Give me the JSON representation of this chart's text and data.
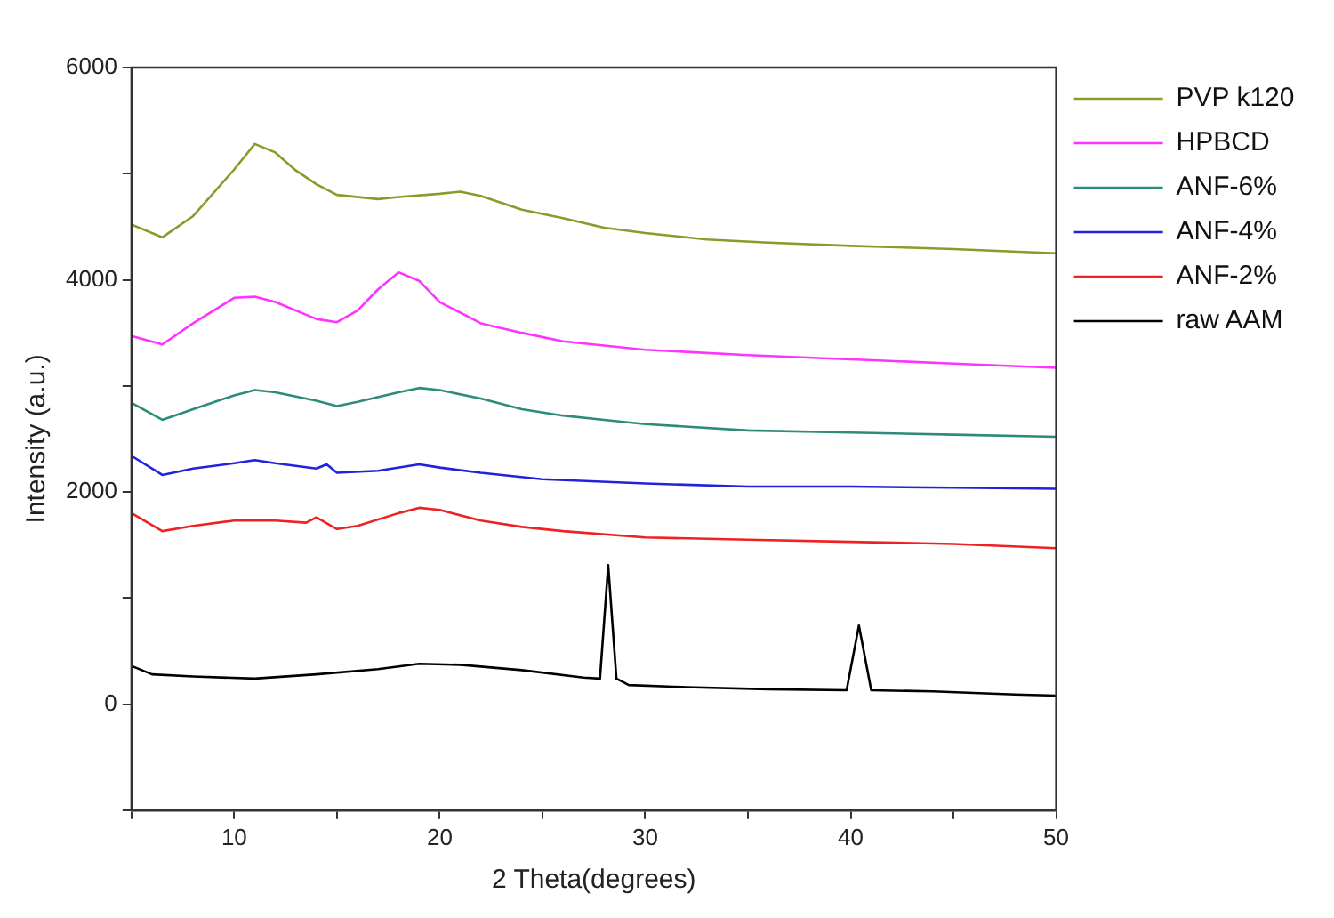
{
  "chart_data": {
    "type": "line",
    "xlabel": "2 Theta(degrees)",
    "ylabel": "Intensity (a.u.)",
    "xlim": [
      5,
      50
    ],
    "xticks": [
      {
        "value": 5,
        "label": null
      },
      10,
      {
        "value": 15,
        "label": null
      },
      20,
      {
        "value": 25,
        "label": null
      },
      30,
      {
        "value": 35,
        "label": null
      },
      40,
      {
        "value": 45,
        "label": null
      },
      50
    ],
    "ylim": [
      -1000,
      6000
    ],
    "yticks": [
      {
        "value": -1000,
        "label": null
      },
      0,
      {
        "value": 1000,
        "label": null
      },
      2000,
      {
        "value": 3000,
        "label": null
      },
      4000,
      {
        "value": 5000,
        "label": null
      },
      6000
    ],
    "grid": false,
    "legend": "top right",
    "marker": "none",
    "line_style": "solid",
    "series": [
      {
        "name": "PVP k120",
        "color": "#8b9a2a",
        "x": [
          5,
          6.5,
          8,
          10,
          11,
          12,
          13,
          14,
          15,
          17,
          18,
          20,
          21,
          22,
          24,
          26,
          28,
          30,
          33,
          36,
          40,
          45,
          50
        ],
        "values": [
          4520,
          4400,
          4600,
          5040,
          5280,
          5200,
          5030,
          4900,
          4800,
          4760,
          4780,
          4810,
          4830,
          4790,
          4660,
          4580,
          4490,
          4440,
          4380,
          4350,
          4320,
          4290,
          4250
        ]
      },
      {
        "name": "HPBCD",
        "color": "#ff33ff",
        "x": [
          5,
          6.5,
          8,
          10,
          11,
          12,
          14,
          15,
          16,
          17,
          18,
          19,
          20,
          22,
          24,
          26,
          28,
          30,
          35,
          40,
          45,
          50
        ],
        "values": [
          3470,
          3390,
          3590,
          3830,
          3840,
          3790,
          3630,
          3600,
          3710,
          3910,
          4070,
          3990,
          3790,
          3590,
          3500,
          3420,
          3380,
          3340,
          3290,
          3250,
          3210,
          3170
        ]
      },
      {
        "name": "ANF-6%",
        "color": "#2e8b7a",
        "x": [
          5,
          6.5,
          8,
          10,
          11,
          12,
          14,
          15,
          16,
          18,
          19,
          20,
          22,
          24,
          26,
          28,
          30,
          35,
          40,
          45,
          50
        ],
        "values": [
          2840,
          2680,
          2780,
          2910,
          2960,
          2940,
          2860,
          2810,
          2850,
          2940,
          2980,
          2960,
          2880,
          2780,
          2720,
          2680,
          2640,
          2580,
          2560,
          2540,
          2520
        ]
      },
      {
        "name": "ANF-4%",
        "color": "#2222dd",
        "x": [
          5,
          6.5,
          8,
          10,
          11,
          12,
          14,
          14.5,
          15,
          17,
          19,
          20,
          22,
          25,
          30,
          35,
          40,
          45,
          50
        ],
        "values": [
          2340,
          2160,
          2220,
          2270,
          2300,
          2270,
          2220,
          2260,
          2180,
          2200,
          2260,
          2230,
          2180,
          2120,
          2080,
          2050,
          2050,
          2040,
          2030
        ]
      },
      {
        "name": "ANF-2%",
        "color": "#ee2222",
        "x": [
          5,
          6.5,
          8,
          10,
          12,
          13.5,
          14,
          15,
          16,
          18,
          19,
          20,
          22,
          24,
          26,
          30,
          35,
          40,
          45,
          50
        ],
        "values": [
          1800,
          1630,
          1680,
          1730,
          1730,
          1710,
          1760,
          1650,
          1680,
          1800,
          1850,
          1830,
          1730,
          1670,
          1630,
          1570,
          1550,
          1530,
          1510,
          1470
        ]
      },
      {
        "name": "raw AAM",
        "color": "#000000",
        "x": [
          5,
          6,
          8,
          11,
          14,
          17,
          19,
          21,
          24,
          27,
          27.8,
          28.2,
          28.6,
          29.2,
          32,
          36,
          39.8,
          40.4,
          41,
          44,
          48,
          50
        ],
        "values": [
          360,
          280,
          260,
          240,
          280,
          330,
          380,
          370,
          320,
          250,
          240,
          1310,
          240,
          180,
          160,
          140,
          130,
          740,
          130,
          120,
          90,
          80
        ]
      }
    ]
  }
}
